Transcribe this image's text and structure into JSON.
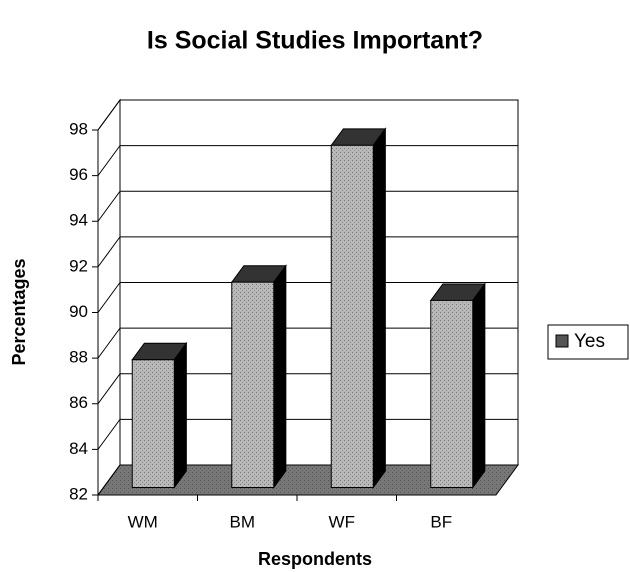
{
  "chart_data": {
    "type": "bar",
    "title": "Is Social Studies Important?",
    "x_label": "Respondents",
    "y_label": "Percentages",
    "categories": [
      "WM",
      "BM",
      "WF",
      "BF"
    ],
    "series": [
      {
        "name": "Yes",
        "color": "#b8b8b8",
        "values": [
          87.6,
          91,
          97,
          90.2
        ]
      }
    ],
    "ylim": [
      82,
      98
    ],
    "yticks": [
      82,
      84,
      86,
      88,
      90,
      92,
      94,
      96,
      98
    ],
    "grid": true,
    "legend": "right"
  }
}
